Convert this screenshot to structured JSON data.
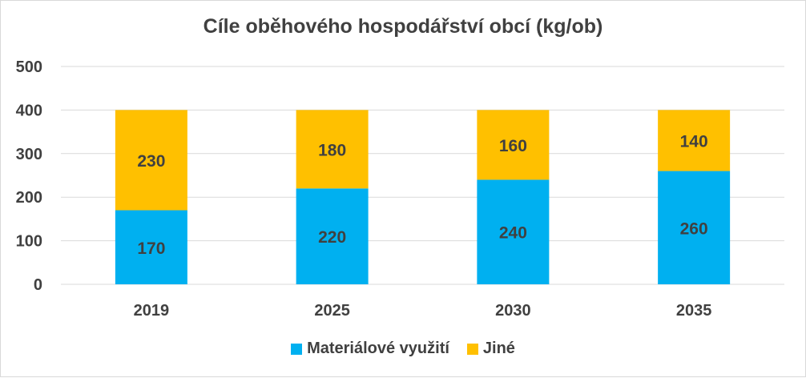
{
  "chart_data": {
    "type": "bar",
    "stacked": true,
    "title": "Cíle oběhového hospodářství obcí (kg/ob)",
    "categories": [
      "2019",
      "2025",
      "2030",
      "2035"
    ],
    "series": [
      {
        "name": "Materiálové využití",
        "color": "#00b0f0",
        "values": [
          170,
          220,
          240,
          260
        ]
      },
      {
        "name": "Jiné",
        "color": "#ffc000",
        "values": [
          230,
          180,
          160,
          140
        ]
      }
    ],
    "ylim": [
      0,
      500
    ],
    "yticks": [
      0,
      100,
      200,
      300,
      400,
      500
    ],
    "grid": true,
    "legend": "bottom"
  }
}
